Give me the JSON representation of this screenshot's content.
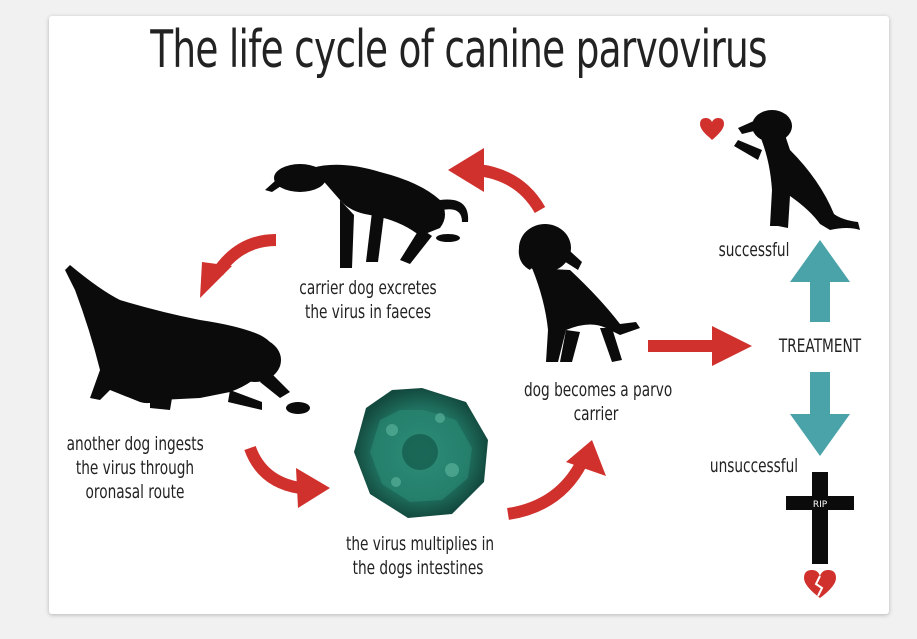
{
  "title": "The life cycle of canine parvovirus",
  "labels": {
    "excretes_line1": "carrier dog excretes",
    "excretes_line2": "the virus in faeces",
    "ingests_line1": "another dog ingests",
    "ingests_line2": "the virus through",
    "ingests_line3": "oronasal route",
    "multiplies_line1": "the virus multiplies in",
    "multiplies_line2": "the dogs intestines",
    "carrier_line1": "dog becomes a parvo",
    "carrier_line2": "carrier",
    "treatment": "TREATMENT",
    "successful": "successful",
    "unsuccessful": "unsuccessful",
    "rip": "RIP"
  },
  "colors": {
    "arrow_red": "#d0312d",
    "arrow_teal": "#4aa3a8",
    "virus": "#1f6f5e",
    "silhouette": "#0b0b0b",
    "heart": "#d0312d"
  }
}
